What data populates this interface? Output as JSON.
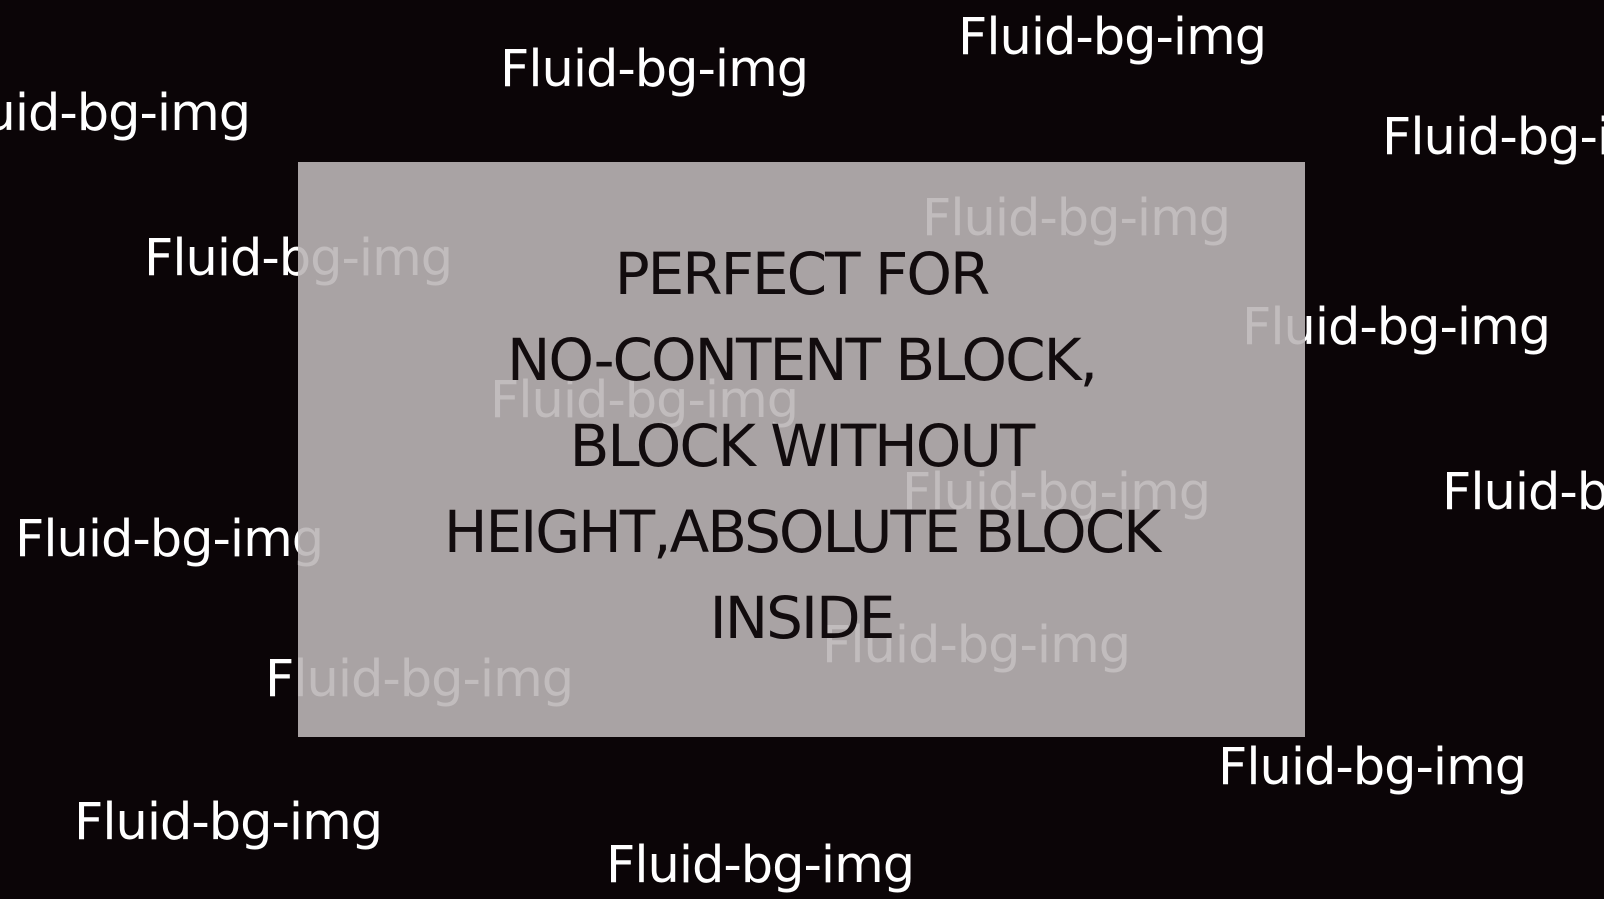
{
  "background": {
    "label": "Fluid-bg-img",
    "color": "#0b0507",
    "text_color": "#ffffff"
  },
  "overlay": {
    "color": "#bab5b6",
    "text_color": "#120c0e",
    "lines": [
      "PERFECT FOR",
      "NO-CONTENT BLOCK,",
      "BLOCK WITHOUT",
      "HEIGHT,ABSOLUTE BLOCK",
      "INSIDE"
    ]
  }
}
